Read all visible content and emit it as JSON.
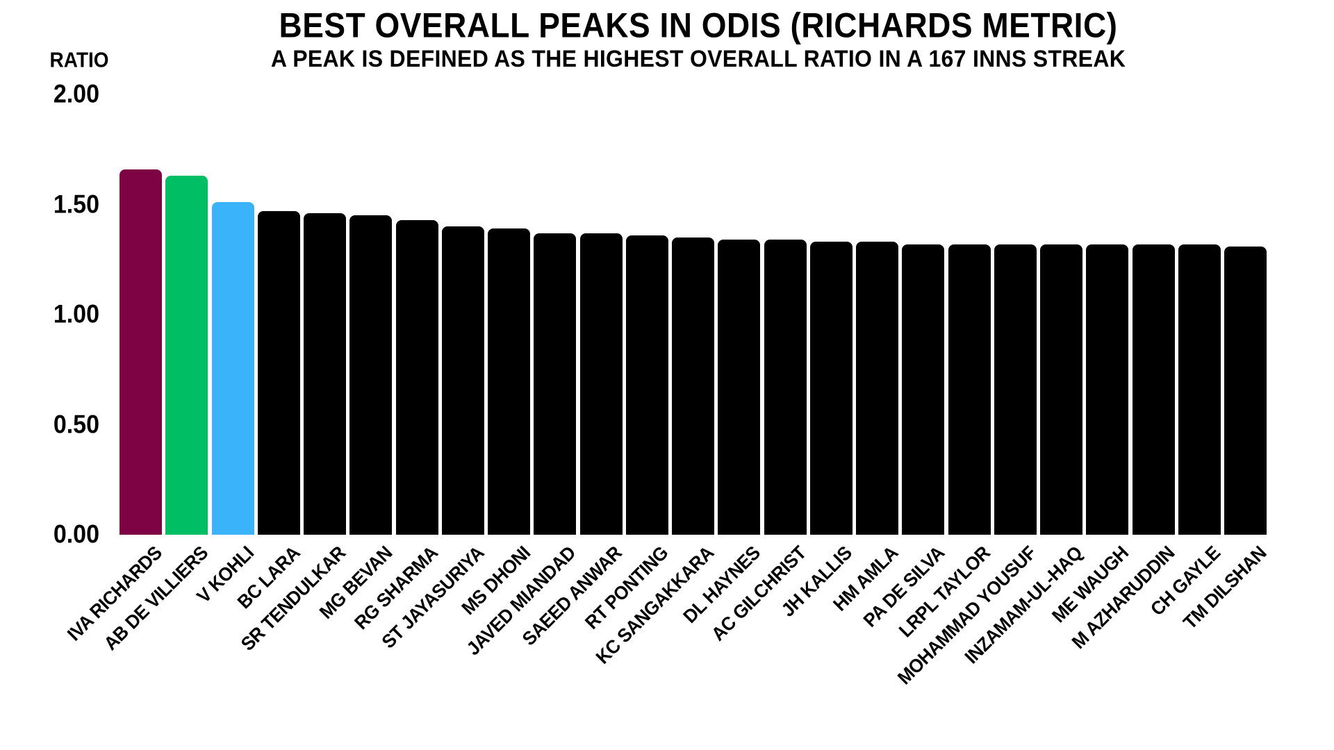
{
  "chart_data": {
    "type": "bar",
    "title": "BEST OVERALL PEAKS IN ODIS (RICHARDS METRIC)",
    "subtitle": "A PEAK IS DEFINED AS THE HIGHEST OVERALL RATIO IN A 167 INNS STREAK",
    "y_axis": {
      "title": "RATIO",
      "tick_labels": [
        "2.00",
        "1.50",
        "1.00",
        "0.50",
        "0.00"
      ],
      "tick_values": [
        2.0,
        1.5,
        1.0,
        0.5,
        0.0
      ],
      "range": [
        0.0,
        2.0
      ]
    },
    "grid": false,
    "legend": null,
    "categories": [
      "IVA RICHARDS",
      "AB DE VILLIERS",
      "V KOHLI",
      "BC LARA",
      "SR TENDULKAR",
      "MG BEVAN",
      "RG SHARMA",
      "ST JAYASURIYA",
      "MS DHONI",
      "JAVED MIANDAD",
      "SAEED ANWAR",
      "RT PONTING",
      "KC SANGAKKARA",
      "DL HAYNES",
      "AC GILCHRIST",
      "JH KALLIS",
      "HM AMLA",
      "PA DE SILVA",
      "LRPL TAYLOR",
      "MOHAMMAD YOUSUF",
      "INZAMAM-UL-HAQ",
      "ME WAUGH",
      "M AZHARUDDIN",
      "CH GAYLE",
      "TM DILSHAN"
    ],
    "values": [
      1.66,
      1.63,
      1.51,
      1.47,
      1.46,
      1.45,
      1.43,
      1.4,
      1.39,
      1.37,
      1.37,
      1.36,
      1.35,
      1.34,
      1.34,
      1.33,
      1.33,
      1.32,
      1.32,
      1.32,
      1.32,
      1.32,
      1.32,
      1.32,
      1.31
    ],
    "colors": [
      "#7D0345",
      "#00BE64",
      "#3BB3FB",
      "#000000",
      "#000000",
      "#000000",
      "#000000",
      "#000000",
      "#000000",
      "#000000",
      "#000000",
      "#000000",
      "#000000",
      "#000000",
      "#000000",
      "#000000",
      "#000000",
      "#000000",
      "#000000",
      "#000000",
      "#000000",
      "#000000",
      "#000000",
      "#000000",
      "#000000"
    ],
    "highlights": [
      {
        "category": "IVA RICHARDS",
        "color": "#7D0345"
      },
      {
        "category": "AB DE VILLIERS",
        "color": "#00BE64"
      },
      {
        "category": "V KOHLI",
        "color": "#3BB3FB"
      }
    ],
    "background_color": "#FFFFFF",
    "text_color": "#000000"
  }
}
